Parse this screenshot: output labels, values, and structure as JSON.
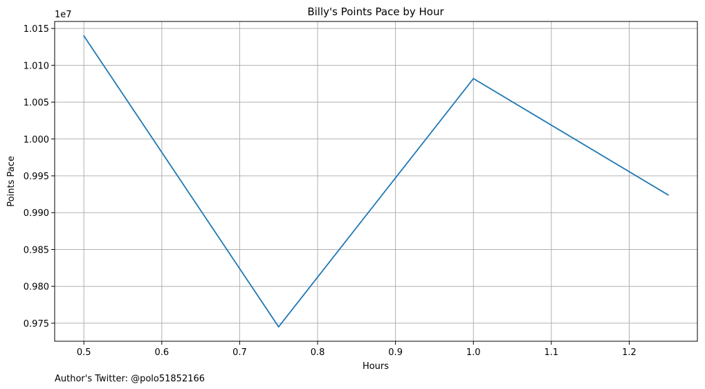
{
  "chart_data": {
    "type": "line",
    "title": "Billy's Points Pace by Hour",
    "xlabel": "Hours",
    "ylabel": "Points Pace",
    "offset_label": "1e7",
    "x": [
      0.5,
      0.75,
      1.0,
      1.25
    ],
    "series": [
      {
        "values": [
          10140000,
          9745000,
          10082000,
          9924000
        ],
        "color": "#1f77b4"
      }
    ],
    "xlim": [
      0.4625,
      1.2875
    ],
    "ylim": [
      9725500.0,
      10159500.0
    ],
    "x_ticks": [
      0.5,
      0.6,
      0.7,
      0.8,
      0.9,
      1.0,
      1.1,
      1.2
    ],
    "x_tick_labels": [
      "0.5",
      "0.6",
      "0.7",
      "0.8",
      "0.9",
      "1.0",
      "1.1",
      "1.2"
    ],
    "y_ticks": [
      9750000,
      9800000,
      9850000,
      9900000,
      9950000,
      10000000,
      10050000,
      10100000,
      10150000
    ],
    "y_tick_labels": [
      "0.975",
      "0.980",
      "0.985",
      "0.990",
      "0.995",
      "1.000",
      "1.005",
      "1.010",
      "1.015"
    ],
    "grid": true
  },
  "footer": "Author's Twitter: @polo51852166"
}
